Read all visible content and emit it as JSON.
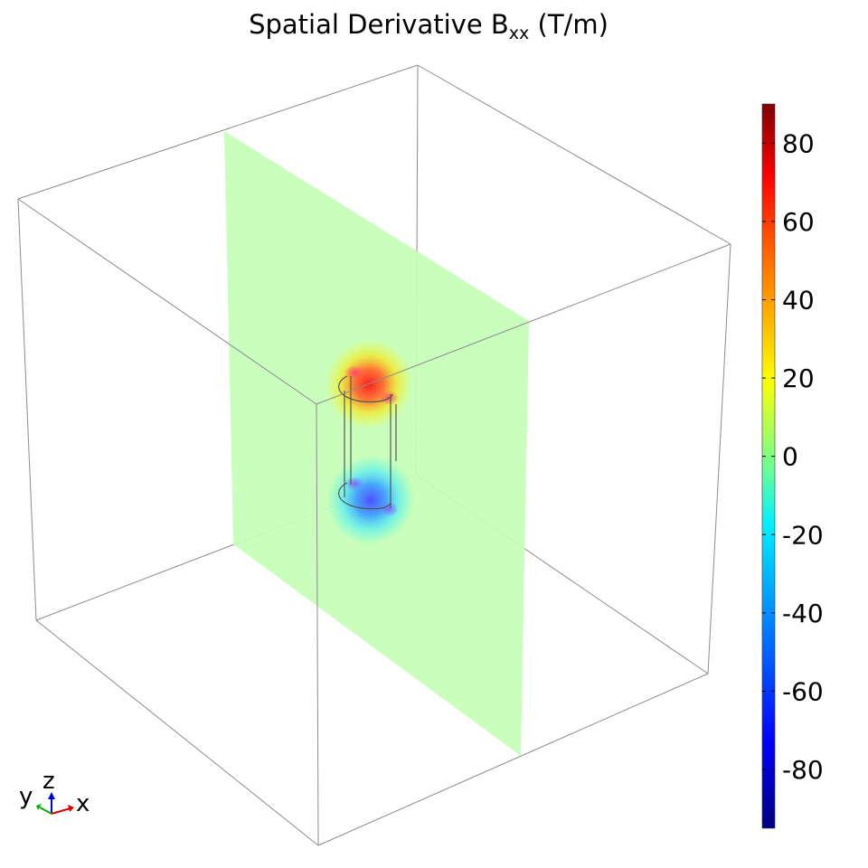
{
  "title": {
    "prefix": "Spatial Derivative B",
    "subscript": "xx",
    "suffix": " (T/m)"
  },
  "chart_data": {
    "type": "heatmap",
    "title": "Spatial Derivative Bxx (T/m)",
    "colormap": "rainbow (dark blue → cyan → green → yellow → red → dark red)",
    "colorbar": {
      "range": [
        -95,
        90
      ],
      "ticks": [
        80,
        60,
        40,
        20,
        0,
        -20,
        -40,
        -60,
        -80
      ],
      "tick_labels": [
        "80",
        "60",
        "40",
        "20",
        "0",
        "-20",
        "-40",
        "-60",
        "-80"
      ]
    },
    "field_features": [
      {
        "location": "top end of cylinder",
        "approx_value": 60
      },
      {
        "location": "bottom end of cylinder",
        "approx_value": -60
      },
      {
        "location": "background of slice plane",
        "approx_value": 0
      }
    ],
    "axes_triad": {
      "labels": [
        "y",
        "z",
        "x"
      ],
      "colors": {
        "x": "#e00000",
        "y": "#00b000",
        "z": "#0000e0"
      }
    }
  },
  "colors": {
    "background": "#ffffff",
    "box_edges": "#8c8c8c",
    "slice_zero": "#c4feb6",
    "cylinder_outline": "#555555"
  }
}
